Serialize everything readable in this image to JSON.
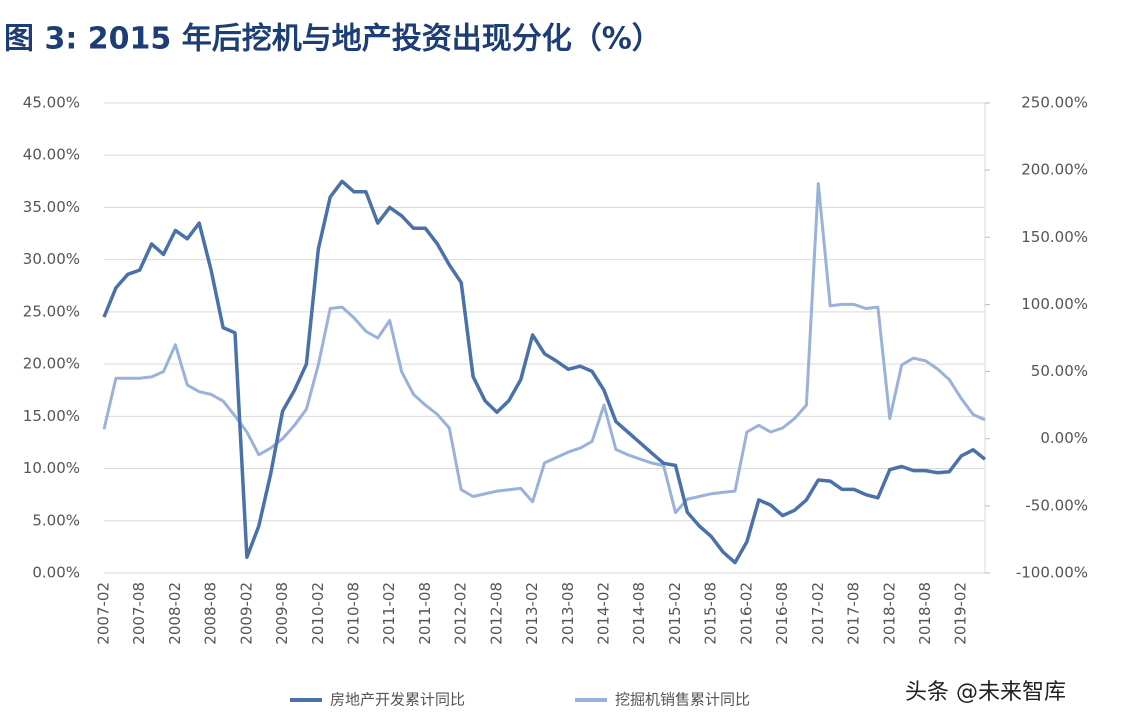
{
  "chart_data": {
    "type": "line",
    "title": "图 3: 2015 年后挖机与地产投资出现分化（%）",
    "watermark": "头条 @未来智库",
    "categories": [
      "2007-02",
      null,
      null,
      "2007-08",
      null,
      null,
      "2008-02",
      null,
      null,
      "2008-08",
      null,
      null,
      "2009-02",
      null,
      null,
      "2009-08",
      null,
      null,
      "2010-02",
      null,
      null,
      "2010-08",
      null,
      null,
      "2011-02",
      null,
      null,
      "2011-08",
      null,
      null,
      "2012-02",
      null,
      null,
      "2012-08",
      null,
      null,
      "2013-02",
      null,
      null,
      "2013-08",
      null,
      null,
      "2014-02",
      null,
      null,
      "2014-08",
      null,
      null,
      "2015-02",
      null,
      null,
      "2015-08",
      null,
      null,
      "2016-02",
      null,
      null,
      "2016-08",
      null,
      null,
      "2017-02",
      null,
      null,
      "2017-08",
      null,
      null,
      "2018-02",
      null,
      null,
      "2018-08",
      null,
      null,
      "2019-02",
      null,
      null
    ],
    "series": [
      {
        "name": "房地产开发累计同比",
        "color": "#4a72a8",
        "values": [
          24.5,
          27.3,
          28.6,
          29.0,
          31.5,
          30.5,
          32.8,
          32.0,
          33.5,
          29.0,
          23.5,
          23.0,
          1.5,
          4.5,
          9.5,
          15.5,
          17.5,
          20,
          31,
          36,
          37.5,
          36.5,
          36.5,
          33.5,
          35,
          34.2,
          33,
          33,
          31.5,
          29.5,
          27.8,
          18.8,
          16.5,
          15.4,
          16.5,
          18.5,
          22.8,
          21,
          20.3,
          19.5,
          19.8,
          19.3,
          17.5,
          14.5,
          13.5,
          12.5,
          11.5,
          10.5,
          10.3,
          5.8,
          4.5,
          3.5,
          2.0,
          1.0,
          3.0,
          7.0,
          6.5,
          5.5,
          6.0,
          7.0,
          8.9,
          8.8,
          8.0,
          8.0,
          7.5,
          7.2,
          9.9,
          10.2,
          9.8,
          9.8,
          9.6,
          9.7,
          11.2,
          11.8,
          10.9
        ]
      },
      {
        "name": "挖掘机销售累计同比",
        "color": "#9ab2da",
        "axis": "y2",
        "values": [
          7,
          45,
          45,
          45,
          46,
          50,
          70,
          40,
          35,
          33,
          28,
          17,
          5,
          -12,
          -7,
          0,
          10,
          22,
          55,
          97,
          98,
          90,
          80,
          75,
          88,
          50,
          33,
          25,
          18,
          8,
          -38,
          -43,
          -41,
          -39,
          -38,
          -37,
          -47,
          -18,
          -14,
          -10,
          -7,
          -2,
          25,
          -8,
          -12,
          -15,
          -18,
          -20,
          -55,
          -45,
          -43,
          -41,
          -40,
          -39,
          5,
          10,
          5,
          8,
          15,
          25,
          190,
          99,
          100,
          100,
          97,
          98,
          15,
          55,
          60,
          58,
          52,
          44,
          30,
          18,
          14
        ]
      }
    ],
    "ylim": [
      0,
      45
    ],
    "yticks": [
      {
        "value": 0,
        "label": "0.00%"
      },
      {
        "value": 5,
        "label": "5.00%"
      },
      {
        "value": 10,
        "label": "10.00%"
      },
      {
        "value": 15,
        "label": "15.00%"
      },
      {
        "value": 20,
        "label": "20.00%"
      },
      {
        "value": 25,
        "label": "25.00%"
      },
      {
        "value": 30,
        "label": "30.00%"
      },
      {
        "value": 35,
        "label": "35.00%"
      },
      {
        "value": 40,
        "label": "40.00%"
      },
      {
        "value": 45,
        "label": "45.00%"
      }
    ],
    "y2lim": [
      -100,
      250
    ],
    "y2ticks": [
      {
        "value": -100,
        "label": "-100.00%"
      },
      {
        "value": -50,
        "label": "-50.00%"
      },
      {
        "value": 0,
        "label": "0.00%"
      },
      {
        "value": 50,
        "label": "50.00%"
      },
      {
        "value": 100,
        "label": "100.00%"
      },
      {
        "value": 150,
        "label": "150.00%"
      },
      {
        "value": 200,
        "label": "200.00%"
      },
      {
        "value": 250,
        "label": "250.00%"
      }
    ],
    "grid": true
  }
}
